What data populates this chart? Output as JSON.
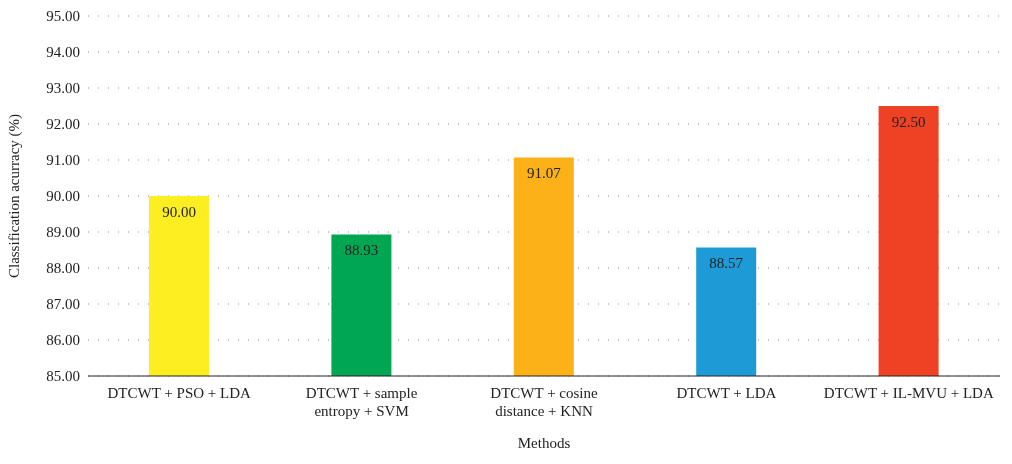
{
  "chart_data": {
    "type": "bar",
    "categories": [
      "DTCWT + PSO + LDA",
      "DTCWT + sample entropy + SVM",
      "DTCWT + cosine distance + KNN",
      "DTCWT + LDA",
      "DTCWT + IL-MVU + LDA"
    ],
    "values": [
      90.0,
      88.93,
      91.07,
      88.57,
      92.5
    ],
    "value_labels": [
      "90.00",
      "88.93",
      "91.07",
      "88.57",
      "92.50"
    ],
    "colors": [
      "#fcee21",
      "#00a651",
      "#fbb117",
      "#1e9bd7",
      "#ef4123"
    ],
    "xlabel": "Methods",
    "ylabel": "Classification acurracy (%)",
    "ylim": [
      85,
      95
    ],
    "yticks": [
      {
        "value": 85,
        "label": "85.00"
      },
      {
        "value": 86,
        "label": "86.00"
      },
      {
        "value": 87,
        "label": "87.00"
      },
      {
        "value": 88,
        "label": "88.00"
      },
      {
        "value": 89,
        "label": "89.00"
      },
      {
        "value": 90,
        "label": "90.00"
      },
      {
        "value": 91,
        "label": "91.00"
      },
      {
        "value": 92,
        "label": "92.00"
      },
      {
        "value": 93,
        "label": "93.00"
      },
      {
        "value": 94,
        "label": "94.00"
      },
      {
        "value": 95,
        "label": "95.00"
      }
    ],
    "grid": "y"
  }
}
